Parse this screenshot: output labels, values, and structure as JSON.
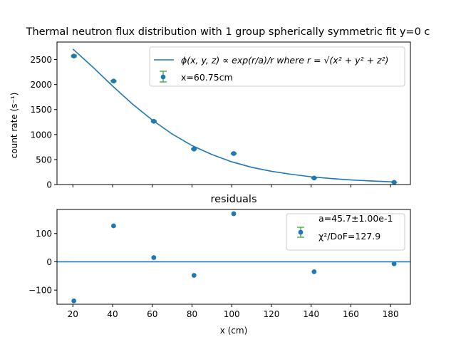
{
  "chart_data": [
    {
      "type": "scatter",
      "title": "Thermal neutron flux distribution with 1 group spherically symmetric fit y=0 c",
      "xlabel": "",
      "ylabel": "count rate (s⁻¹)",
      "xlim": [
        12,
        190
      ],
      "ylim": [
        0,
        2850
      ],
      "yticks": [
        0,
        500,
        1000,
        1500,
        2000,
        2500
      ],
      "xticks": [
        20,
        40,
        60,
        80,
        100,
        120,
        140,
        160,
        180
      ],
      "legend_position": "upper right",
      "series": [
        {
          "name": "x=60.75cm",
          "kind": "errorbar",
          "x": [
            20.5,
            40.5,
            60.75,
            81.0,
            101.0,
            141.5,
            181.8
          ],
          "y": [
            2570,
            2070,
            1265,
            710,
            620,
            130,
            45
          ],
          "xerr": [
            1.5,
            1.5,
            1.5,
            1.5,
            1.5,
            1.5,
            1.5
          ],
          "yerr": [
            20,
            18,
            15,
            12,
            11,
            6,
            4
          ]
        },
        {
          "name": "ϕ(x, y, z) ∝ exp(r/a)/r where r = √(x² + y² + z²)",
          "kind": "line",
          "x": [
            20,
            30,
            40,
            50,
            60,
            70,
            80,
            90,
            100,
            110,
            120,
            130,
            140,
            150,
            160,
            170,
            180,
            182
          ],
          "y": [
            2710,
            2350,
            1970,
            1610,
            1290,
            1010,
            780,
            600,
            455,
            345,
            265,
            205,
            155,
            120,
            92,
            72,
            55,
            52
          ]
        }
      ]
    },
    {
      "type": "scatter",
      "title": "residuals",
      "xlabel": "x (cm)",
      "ylabel": "",
      "xlim": [
        12,
        190
      ],
      "ylim": [
        -150,
        185
      ],
      "yticks": [
        -100,
        0,
        100
      ],
      "xticks": [
        20,
        40,
        60,
        80,
        100,
        120,
        140,
        160,
        180
      ],
      "hline": 0,
      "legend_position": "upper right",
      "legend_text": [
        "a=45.7±1.00e-1",
        "χ²/DoF=127.9"
      ],
      "series": [
        {
          "name": "residuals",
          "x": [
            20.5,
            40.5,
            60.75,
            81.0,
            101.0,
            141.5,
            181.8
          ],
          "y": [
            -138,
            127,
            15,
            -48,
            170,
            -35,
            -7
          ]
        }
      ]
    }
  ]
}
